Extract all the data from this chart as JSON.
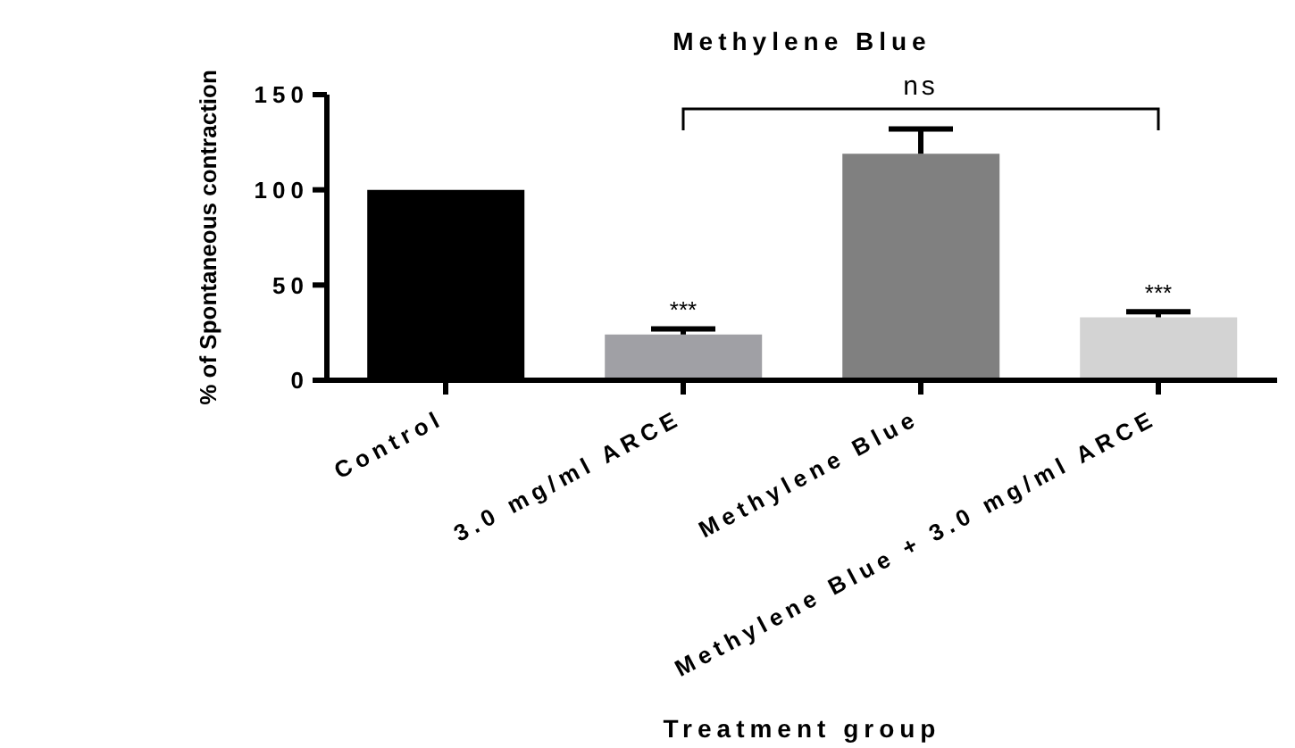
{
  "chart_data": {
    "type": "bar",
    "title": "Methylene Blue",
    "xlabel": "Treatment group",
    "ylabel": "% of Spontaneous contraction",
    "categories": [
      "Control",
      "3.0 mg/ml ARCE",
      "Methylene Blue",
      "Methylene Blue + 3.0 mg/ml ARCE"
    ],
    "values": [
      100,
      24,
      119,
      33
    ],
    "colors": [
      "#000000",
      "#a0a0a5",
      "#808080",
      "#d3d3d3"
    ],
    "errors": [
      null,
      [
        24,
        27
      ],
      [
        119,
        132
      ],
      [
        33,
        36
      ]
    ],
    "ylim": [
      0,
      150
    ],
    "yticks": [
      0,
      50,
      100,
      150
    ],
    "grid": false,
    "legend": false,
    "annotations": [
      {
        "text": "***",
        "x": "3.0 mg/ml ARCE",
        "y": 27
      },
      {
        "text": "***",
        "x": "Methylene Blue + 3.0 mg/ml ARCE",
        "y": 36
      },
      "ns"
    ]
  }
}
